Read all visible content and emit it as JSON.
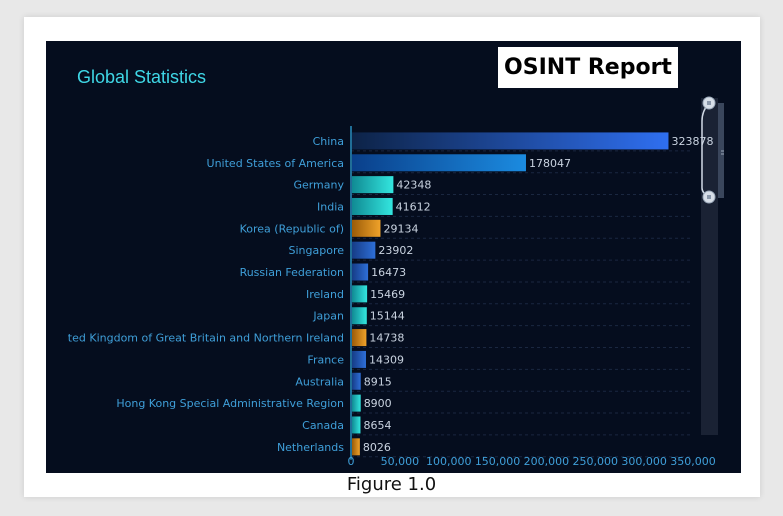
{
  "panel": {
    "title": "Global Statistics",
    "report_badge": "OSINT Report"
  },
  "caption": "Figure 1.0",
  "chart_data": {
    "type": "bar",
    "orientation": "horizontal",
    "title": "Global Statistics",
    "categories": [
      "China",
      "United States of America",
      "Germany",
      "India",
      "Korea (Republic of)",
      "Singapore",
      "Russian Federation",
      "Ireland",
      "Japan",
      "ted Kingdom of Great Britain and Northern Ireland",
      "France",
      "Australia",
      "Hong Kong Special Administrative Region",
      "Canada",
      "Netherlands"
    ],
    "values": [
      323878,
      178047,
      42348,
      41612,
      29134,
      23902,
      16473,
      15469,
      15144,
      14738,
      14309,
      8915,
      8900,
      8654,
      8026
    ],
    "bar_colors": [
      "blue",
      "blue",
      "cyan",
      "cyan",
      "orange",
      "blue",
      "blue",
      "cyan",
      "cyan",
      "orange",
      "blue",
      "blue",
      "cyan",
      "cyan",
      "orange"
    ],
    "xlim": [
      0,
      350000
    ],
    "xticks": [
      "0",
      "50,000",
      "100,000",
      "150,000",
      "200,000",
      "250,000",
      "300,000",
      "350,000"
    ],
    "grid": "horizontal dashed",
    "colors": {
      "blue": "#2a6fe6",
      "cyan": "#27d3cf",
      "orange": "#e2901a",
      "label": "#3f9fd9",
      "value": "#c9d3e0",
      "axis": "#2a8fbf"
    }
  },
  "scrollbar": {
    "visible": true
  }
}
